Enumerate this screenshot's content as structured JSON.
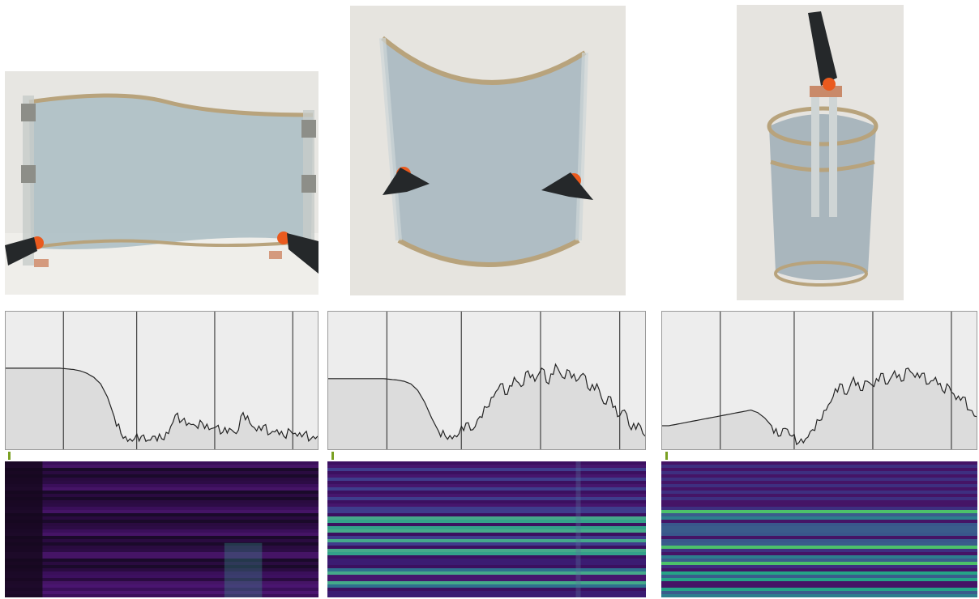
{
  "panels": [
    {
      "id": "flat-panel",
      "photo_icon": "flat-transparent-sheet-with-clamps",
      "spectrum": {
        "type": "line",
        "marker_color": "#7aa022",
        "profile": [
          0.62,
          0.62,
          0.62,
          0.62,
          0.62,
          0.62,
          0.62,
          0.62,
          0.62,
          0.615,
          0.61,
          0.6,
          0.58,
          0.55,
          0.5,
          0.4,
          0.25,
          0.12,
          0.06,
          0.08,
          0.1,
          0.07,
          0.1,
          0.08,
          0.12,
          0.26,
          0.22,
          0.2,
          0.18,
          0.2,
          0.15,
          0.17,
          0.13,
          0.16,
          0.12,
          0.28,
          0.2,
          0.14,
          0.18,
          0.12,
          0.15,
          0.1,
          0.14,
          0.1,
          0.12,
          0.08,
          0.1
        ]
      },
      "spectrogram": {
        "colormap": "viridis",
        "intensity": "low"
      }
    },
    {
      "id": "curved-panel",
      "photo_icon": "curved-transparent-sheet-with-clamps",
      "spectrum": {
        "type": "line",
        "marker_color": "#7aa022",
        "profile": [
          0.54,
          0.54,
          0.54,
          0.54,
          0.54,
          0.54,
          0.54,
          0.54,
          0.54,
          0.535,
          0.53,
          0.52,
          0.5,
          0.45,
          0.36,
          0.24,
          0.14,
          0.1,
          0.08,
          0.12,
          0.2,
          0.15,
          0.25,
          0.32,
          0.4,
          0.5,
          0.42,
          0.55,
          0.48,
          0.6,
          0.52,
          0.62,
          0.5,
          0.65,
          0.55,
          0.6,
          0.52,
          0.58,
          0.45,
          0.5,
          0.35,
          0.4,
          0.25,
          0.3,
          0.15,
          0.2,
          0.1
        ]
      },
      "spectrogram": {
        "colormap": "viridis",
        "intensity": "medium"
      }
    },
    {
      "id": "cylinder-panel",
      "photo_icon": "transparent-cylinder-with-clamp",
      "spectrum": {
        "type": "line",
        "marker_color": "#7aa022",
        "profile": [
          0.18,
          0.18,
          0.19,
          0.2,
          0.21,
          0.22,
          0.23,
          0.24,
          0.25,
          0.26,
          0.27,
          0.28,
          0.29,
          0.3,
          0.28,
          0.24,
          0.18,
          0.1,
          0.16,
          0.1,
          0.05,
          0.08,
          0.15,
          0.22,
          0.3,
          0.4,
          0.5,
          0.42,
          0.55,
          0.45,
          0.52,
          0.48,
          0.58,
          0.5,
          0.6,
          0.52,
          0.62,
          0.55,
          0.58,
          0.5,
          0.55,
          0.45,
          0.48,
          0.38,
          0.4,
          0.3,
          0.25
        ]
      },
      "spectrogram": {
        "colormap": "viridis",
        "intensity": "high"
      }
    }
  ]
}
